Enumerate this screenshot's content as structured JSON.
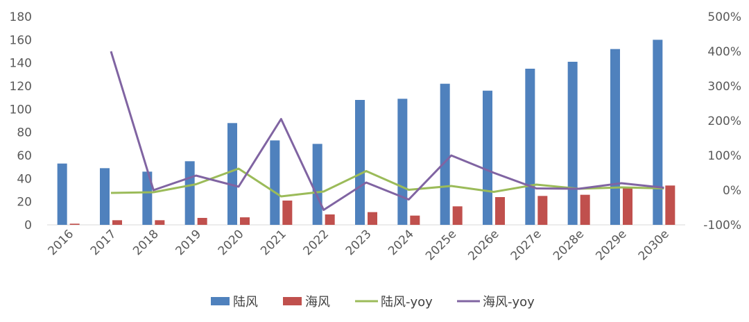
{
  "chart_data": {
    "type": "bar",
    "categories": [
      "2016",
      "2017",
      "2018",
      "2019",
      "2020",
      "2021",
      "2022",
      "2023",
      "2024",
      "2025e",
      "2026e",
      "2027e",
      "2028e",
      "2029e",
      "2030e"
    ],
    "series": [
      {
        "name": "陆风",
        "type": "bar",
        "axis": "left",
        "color": "#4F81BD",
        "values": [
          53,
          49,
          46,
          55,
          88,
          73,
          70,
          108,
          109,
          122,
          116,
          135,
          141,
          152,
          160
        ]
      },
      {
        "name": "海风",
        "type": "bar",
        "axis": "left",
        "color": "#C0504D",
        "values": [
          1,
          4,
          4,
          6,
          6.5,
          21,
          9,
          11,
          8,
          16,
          24,
          25,
          26,
          32,
          34
        ]
      },
      {
        "name": "陆风-yoy",
        "type": "line",
        "axis": "right",
        "color": "#9BBB59",
        "values": [
          null,
          -8,
          -6,
          17,
          62,
          -18,
          -4,
          55,
          1,
          12,
          -5,
          16,
          4,
          8,
          5
        ]
      },
      {
        "name": "海风-yoy",
        "type": "line",
        "axis": "right",
        "color": "#8064A2",
        "values": [
          null,
          400,
          0,
          42,
          10,
          205,
          -57,
          22,
          -27,
          100,
          50,
          5,
          4,
          20,
          7
        ]
      }
    ],
    "y_left": {
      "min": 0,
      "max": 180,
      "step": 20,
      "tick_labels": [
        "0",
        "20",
        "40",
        "60",
        "80",
        "100",
        "120",
        "140",
        "160",
        "180"
      ]
    },
    "y_right": {
      "min": -100,
      "max": 500,
      "step": 100,
      "tick_labels": [
        "-100%",
        "0%",
        "100%",
        "200%",
        "300%",
        "400%",
        "500%"
      ]
    },
    "legend_position": "bottom",
    "grid": false
  }
}
